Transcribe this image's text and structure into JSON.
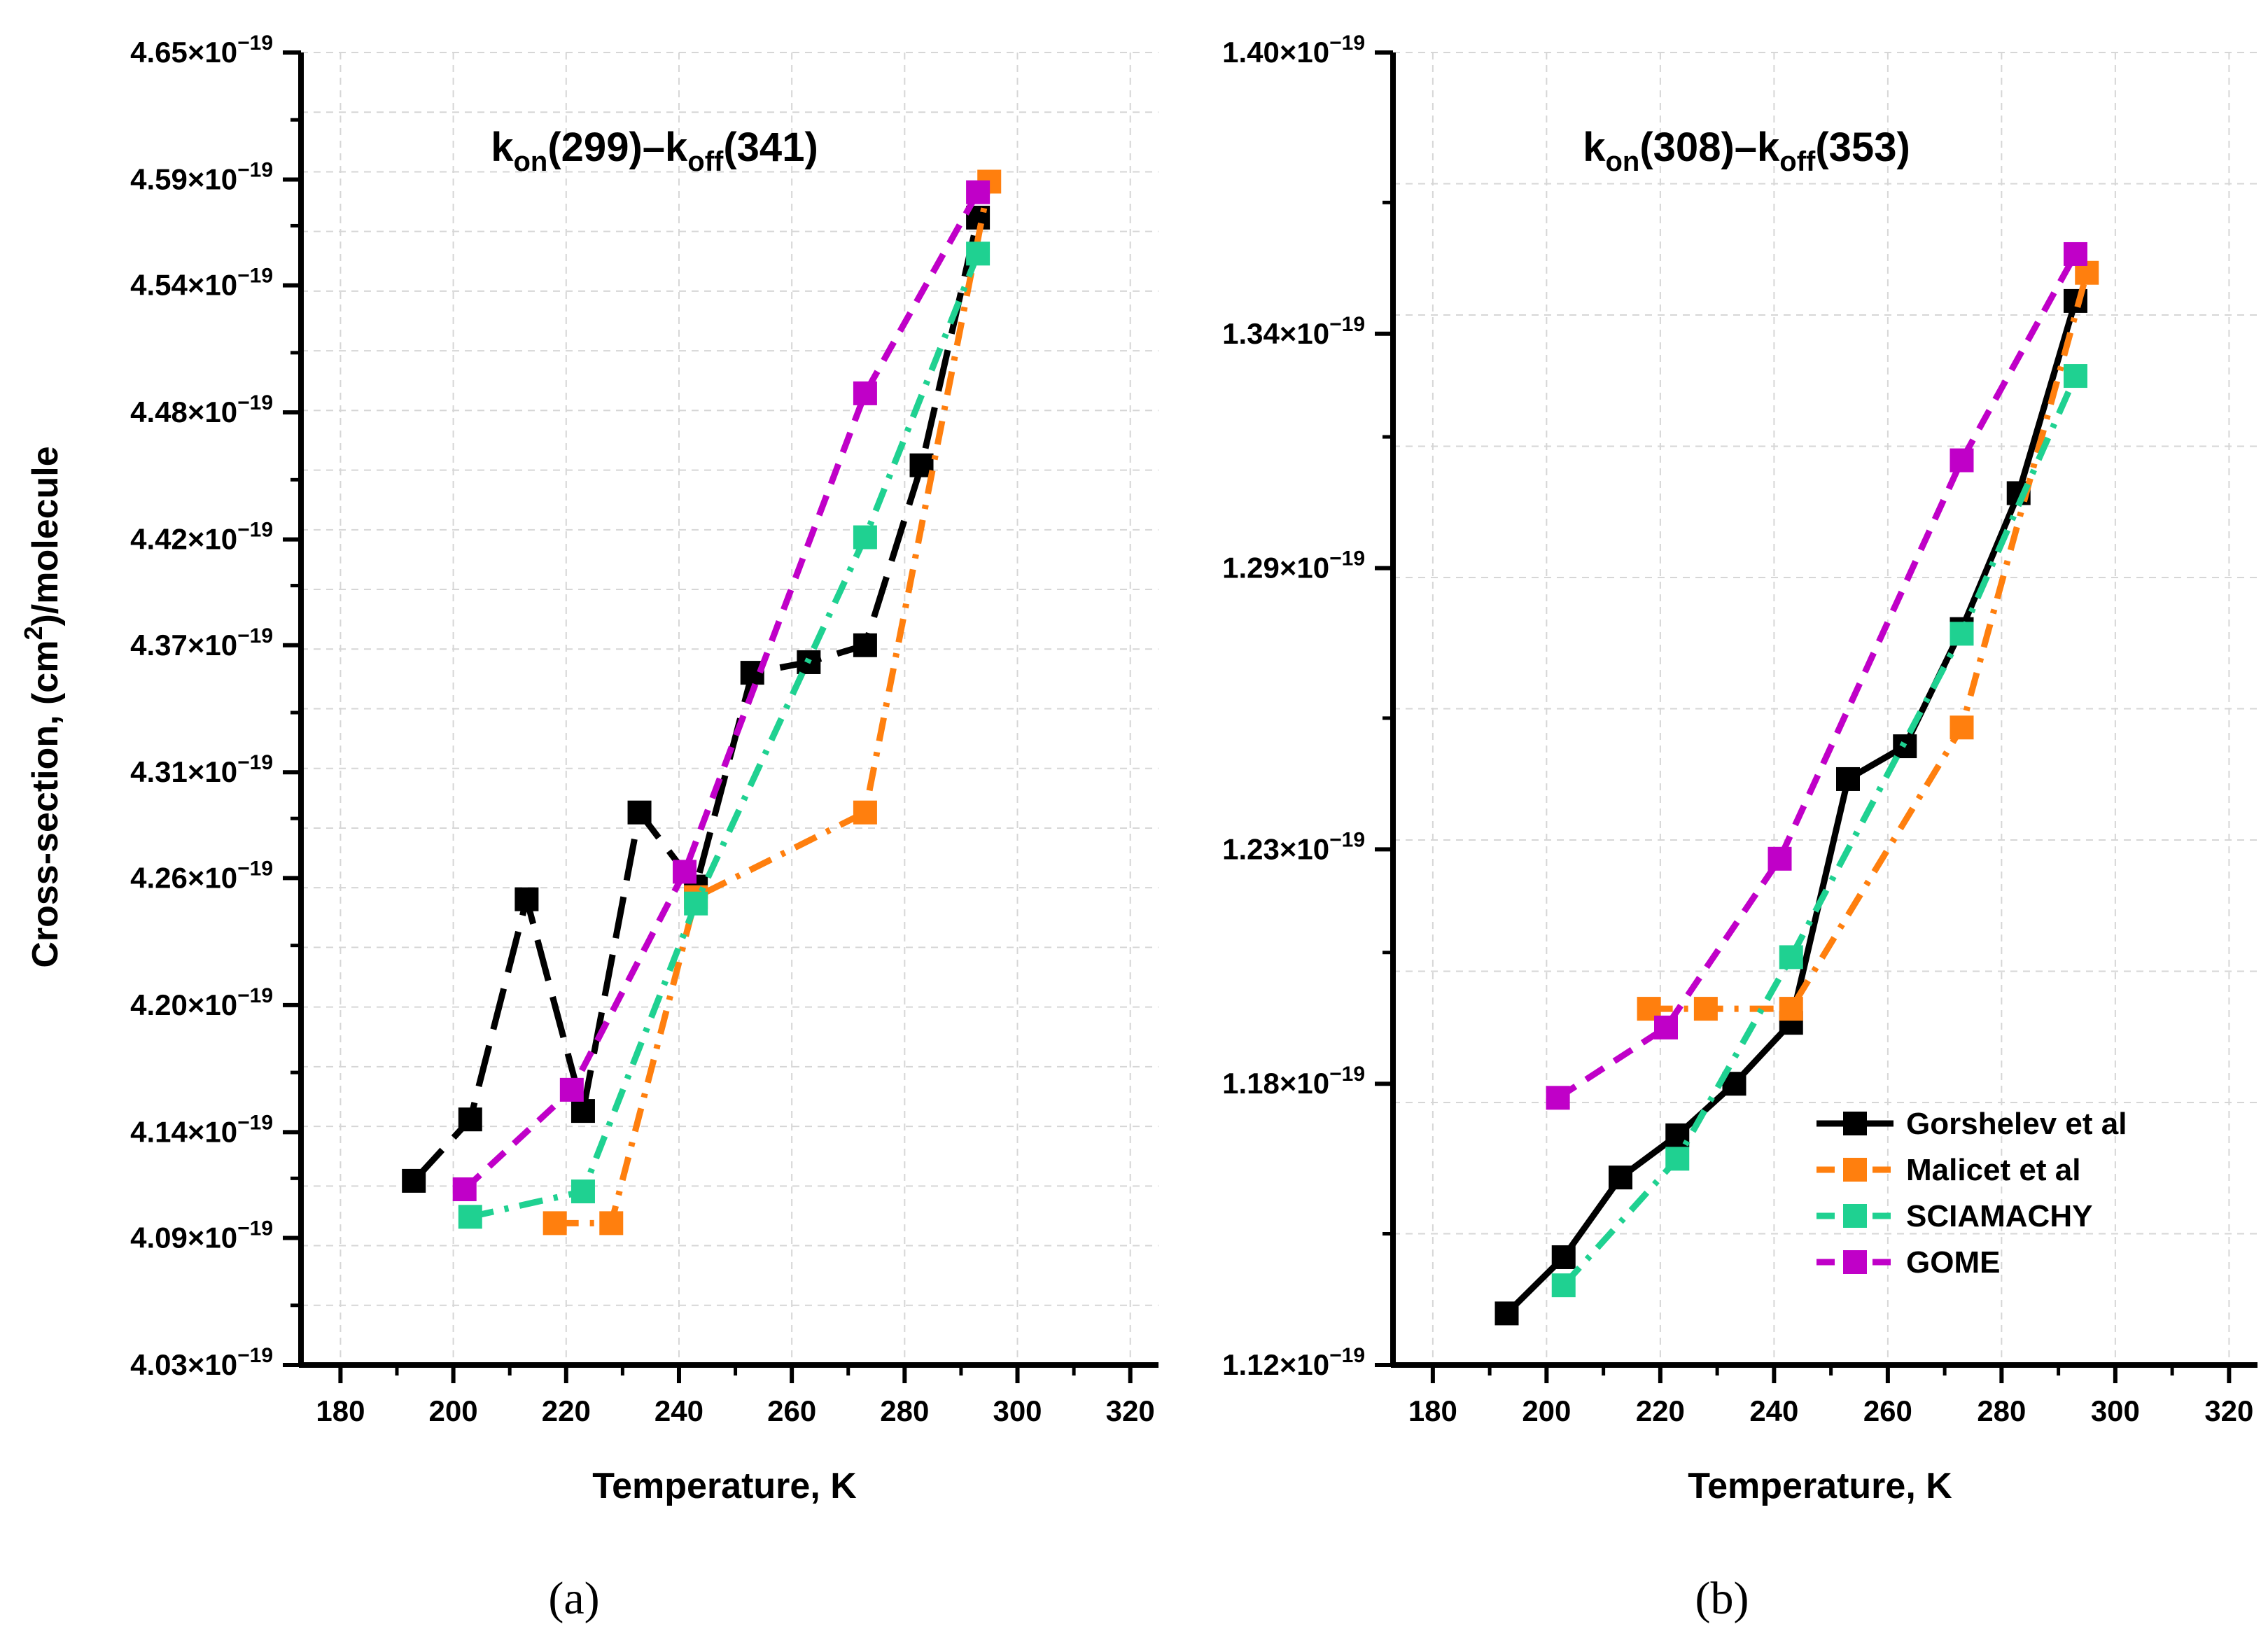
{
  "colors": {
    "Gorshelev et al": "#000000",
    "Malicet et al": "#ff7f0e",
    "SCIAMACHY": "#1fd191",
    "GOME": "#c000c8",
    "grid": "#d6d6d6",
    "axis": "#000000"
  },
  "legend": [
    "Gorshelev et al",
    "Malicet et al",
    "SCIAMACHY",
    "GOME"
  ],
  "chart_data": [
    {
      "type": "line",
      "panel_label": "(a)",
      "title": {
        "base1": "k",
        "sub1": "on",
        "mid": "(299)–k",
        "sub2": "off",
        "tail": "(341)"
      },
      "xlabel": "Temperature, K",
      "ylabel": {
        "pre": "Cross-section, (cm",
        "sup": "2",
        "post": ")/molecule"
      },
      "xlim": [
        173,
        325
      ],
      "ylim": [
        4.03,
        4.65
      ],
      "xticks": [
        180,
        200,
        220,
        240,
        260,
        280,
        300,
        320
      ],
      "yticks": [
        4.03,
        4.09,
        4.14,
        4.2,
        4.26,
        4.31,
        4.37,
        4.42,
        4.48,
        4.54,
        4.59,
        4.65
      ],
      "ytick_labels": [
        {
          "mant": "4.03×10",
          "exp": "−19"
        },
        {
          "mant": "4.09×10",
          "exp": "−19"
        },
        {
          "mant": "4.14×10",
          "exp": "−19"
        },
        {
          "mant": "4.20×10",
          "exp": "−19"
        },
        {
          "mant": "4.26×10",
          "exp": "−19"
        },
        {
          "mant": "4.31×10",
          "exp": "−19"
        },
        {
          "mant": "4.37×10",
          "exp": "−19"
        },
        {
          "mant": "4.42×10",
          "exp": "−19"
        },
        {
          "mant": "4.48×10",
          "exp": "−19"
        },
        {
          "mant": "4.54×10",
          "exp": "−19"
        },
        {
          "mant": "4.59×10",
          "exp": "−19"
        },
        {
          "mant": "4.65×10",
          "exp": "−19"
        }
      ],
      "grid": true,
      "legend_position": "none",
      "series": [
        {
          "name": "Gorshelev et al",
          "dash": "long",
          "x": [
            193,
            203,
            213,
            223,
            233,
            243,
            253,
            263,
            273,
            283,
            293
          ],
          "y": [
            4.117,
            4.146,
            4.25,
            4.15,
            4.291,
            4.256,
            4.357,
            4.362,
            4.37,
            4.455,
            4.572
          ]
        },
        {
          "name": "Malicet et al",
          "dash": "dashdot",
          "x": [
            218,
            228,
            243,
            273,
            295
          ],
          "y": [
            4.097,
            4.097,
            4.251,
            4.291,
            4.589
          ]
        },
        {
          "name": "SCIAMACHY",
          "dash": "dashdot",
          "x": [
            203,
            223,
            243,
            273,
            293
          ],
          "y": [
            4.1,
            4.112,
            4.248,
            4.421,
            4.555
          ]
        },
        {
          "name": "GOME",
          "dash": "dash",
          "x": [
            202,
            221,
            241,
            273,
            293
          ],
          "y": [
            4.113,
            4.16,
            4.263,
            4.489,
            4.584
          ]
        }
      ]
    },
    {
      "type": "line",
      "panel_label": "(b)",
      "title": {
        "base1": "k",
        "sub1": "on",
        "mid": "(308)–k",
        "sub2": "off",
        "tail": "(353)"
      },
      "xlabel": "Temperature, K",
      "ylabel": {
        "pre": "",
        "sup": "",
        "post": ""
      },
      "xlim": [
        173,
        325
      ],
      "ylim": [
        1.12,
        1.4
      ],
      "xticks": [
        180,
        200,
        220,
        240,
        260,
        280,
        300,
        320
      ],
      "yticks": [
        1.12,
        1.18,
        1.23,
        1.29,
        1.34,
        1.4
      ],
      "ytick_labels": [
        {
          "mant": "1.12×10",
          "exp": "−19"
        },
        {
          "mant": "1.18×10",
          "exp": "−19"
        },
        {
          "mant": "1.23×10",
          "exp": "−19"
        },
        {
          "mant": "1.29×10",
          "exp": "−19"
        },
        {
          "mant": "1.34×10",
          "exp": "−19"
        },
        {
          "mant": "1.40×10",
          "exp": "−19"
        }
      ],
      "grid": true,
      "legend_position": "lower-right",
      "series": [
        {
          "name": "Gorshelev et al",
          "dash": "solid",
          "x": [
            193,
            203,
            213,
            223,
            233,
            243,
            253,
            263,
            273,
            283,
            293
          ],
          "y": [
            1.131,
            1.143,
            1.16,
            1.169,
            1.18,
            1.193,
            1.245,
            1.252,
            1.277,
            1.306,
            1.347
          ]
        },
        {
          "name": "Malicet et al",
          "dash": "dashdot",
          "x": [
            218,
            228,
            243,
            273,
            295
          ],
          "y": [
            1.196,
            1.196,
            1.196,
            1.256,
            1.353
          ]
        },
        {
          "name": "SCIAMACHY",
          "dash": "dashdot",
          "x": [
            203,
            223,
            243,
            273,
            293
          ],
          "y": [
            1.137,
            1.164,
            1.207,
            1.276,
            1.331
          ]
        },
        {
          "name": "GOME",
          "dash": "dash",
          "x": [
            202,
            221,
            241,
            273,
            293
          ],
          "y": [
            1.177,
            1.192,
            1.228,
            1.313,
            1.357
          ]
        }
      ]
    }
  ]
}
